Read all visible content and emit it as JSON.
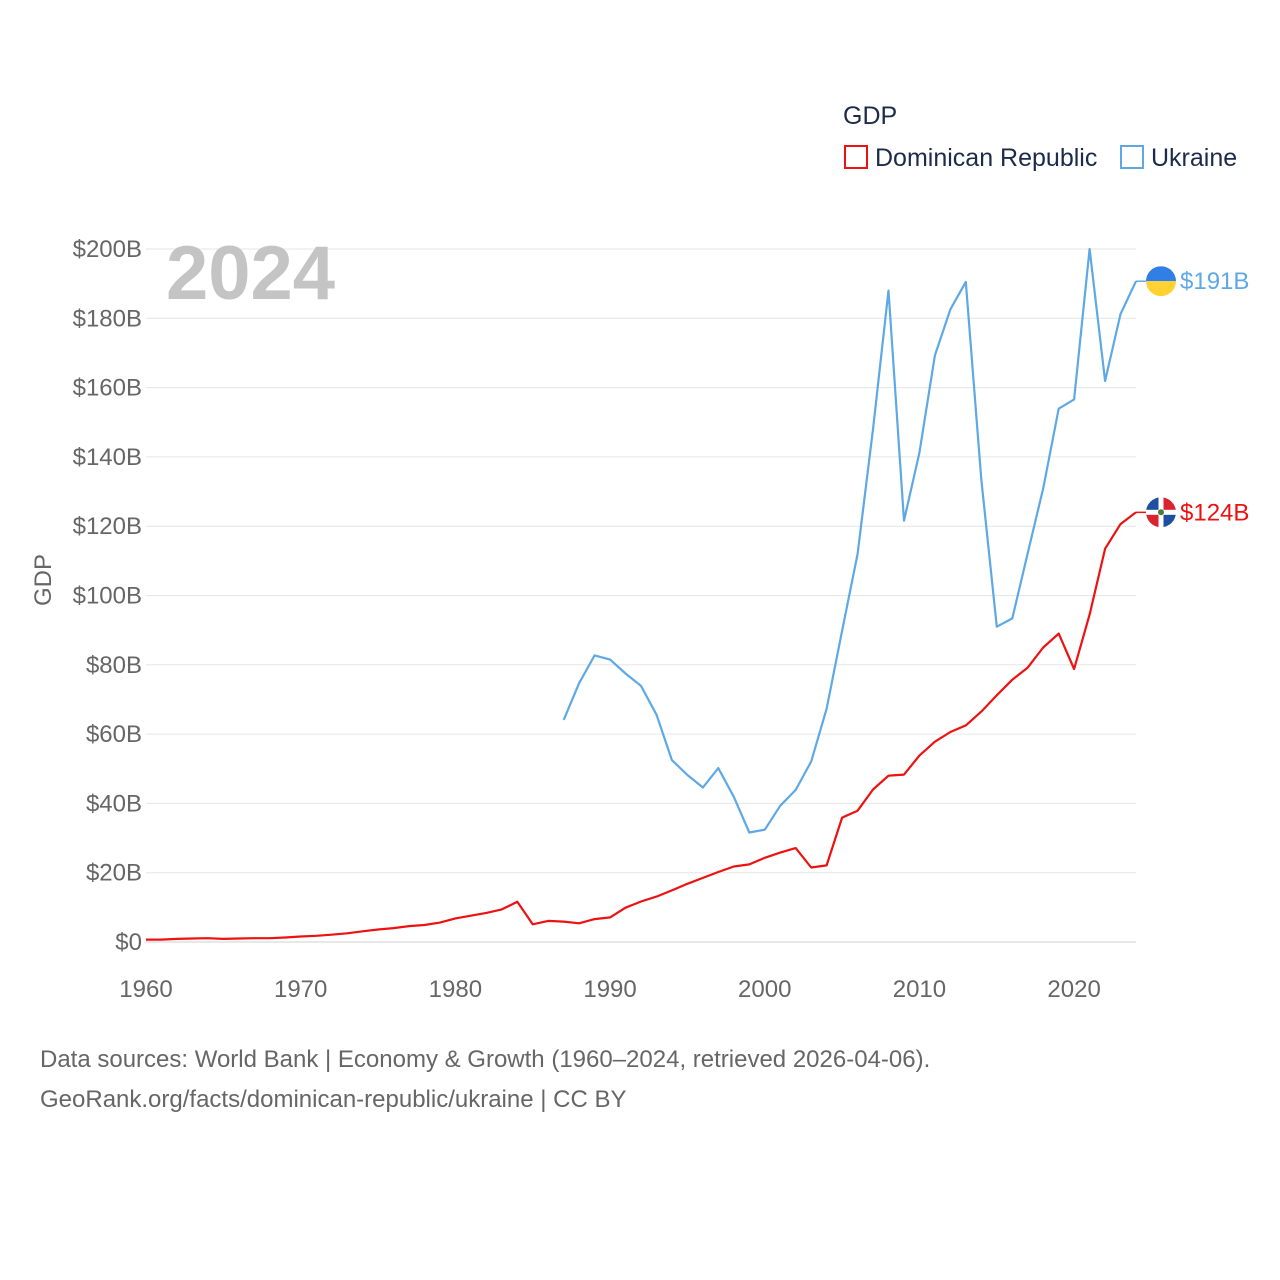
{
  "colors": {
    "dominican_republic": "#ee1111",
    "ukraine": "#5ea8e6",
    "grid": "#e6e6e6",
    "axis_text": "#666666",
    "watermark": "#c4c4c4",
    "legend_text": "#1c2b4a"
  },
  "chart_data": {
    "type": "line",
    "title": "",
    "xlabel": "",
    "ylabel": "GDP",
    "year_watermark": "2024",
    "legend_title": "GDP",
    "legend_position": "top-right",
    "xlim": [
      1960,
      2024
    ],
    "ylim": [
      0,
      200
    ],
    "unit": "billion USD",
    "x_ticks": [
      1960,
      1970,
      1980,
      1990,
      2000,
      2010,
      2020
    ],
    "x_tick_labels": [
      "1960",
      "1970",
      "1980",
      "1990",
      "2000",
      "2010",
      "2020"
    ],
    "y_ticks": [
      0,
      20,
      40,
      60,
      80,
      100,
      120,
      140,
      160,
      180,
      200
    ],
    "y_tick_labels": [
      "$0",
      "$20B",
      "$40B",
      "$60B",
      "$80B",
      "$100B",
      "$120B",
      "$140B",
      "$160B",
      "$180B",
      "$200B"
    ],
    "grid": true,
    "series": [
      {
        "name": "Dominican Republic",
        "color": "#ee1111",
        "end_label": "$124B",
        "flag": "dominican-republic",
        "x": [
          1960,
          1961,
          1962,
          1963,
          1964,
          1965,
          1966,
          1967,
          1968,
          1969,
          1970,
          1971,
          1972,
          1973,
          1974,
          1975,
          1976,
          1977,
          1978,
          1979,
          1980,
          1981,
          1982,
          1983,
          1984,
          1985,
          1986,
          1987,
          1988,
          1989,
          1990,
          1991,
          1992,
          1993,
          1994,
          1995,
          1996,
          1997,
          1998,
          1999,
          2000,
          2001,
          2002,
          2003,
          2004,
          2005,
          2006,
          2007,
          2008,
          2009,
          2010,
          2011,
          2012,
          2013,
          2014,
          2015,
          2016,
          2017,
          2018,
          2019,
          2020,
          2021,
          2022,
          2023,
          2024
        ],
        "values": [
          0.7,
          0.7,
          0.9,
          1.0,
          1.1,
          0.9,
          1.0,
          1.1,
          1.1,
          1.3,
          1.6,
          1.8,
          2.1,
          2.5,
          3.1,
          3.6,
          4.0,
          4.6,
          4.9,
          5.6,
          6.8,
          7.6,
          8.4,
          9.4,
          11.6,
          5.1,
          6.1,
          5.9,
          5.4,
          6.6,
          7.1,
          9.9,
          11.7,
          13.1,
          14.9,
          16.8,
          18.5,
          20.2,
          21.8,
          22.4,
          24.3,
          25.8,
          27.1,
          21.5,
          22.1,
          35.9,
          37.9,
          44.0,
          48.0,
          48.3,
          53.8,
          57.8,
          60.6,
          62.5,
          66.5,
          71.2,
          75.7,
          79.2,
          85.0,
          89.0,
          78.8,
          94.5,
          113.5,
          120.6,
          124.0
        ]
      },
      {
        "name": "Ukraine",
        "color": "#5ea8e6",
        "end_label": "$191B",
        "flag": "ukraine",
        "x": [
          1987,
          1988,
          1989,
          1990,
          1991,
          1992,
          1993,
          1994,
          1995,
          1996,
          1997,
          1998,
          1999,
          2000,
          2001,
          2002,
          2003,
          2004,
          2005,
          2006,
          2007,
          2008,
          2009,
          2010,
          2011,
          2012,
          2013,
          2014,
          2015,
          2016,
          2017,
          2018,
          2019,
          2020,
          2021,
          2022,
          2023,
          2024
        ],
        "values": [
          64.1,
          74.7,
          82.7,
          81.5,
          77.5,
          73.9,
          65.6,
          52.5,
          48.2,
          44.6,
          50.2,
          41.9,
          31.6,
          32.4,
          39.3,
          43.9,
          52.1,
          67.3,
          89.8,
          112.0,
          148.0,
          188.0,
          121.6,
          141.2,
          169.3,
          182.6,
          190.5,
          133.5,
          91.0,
          93.4,
          112.2,
          130.9,
          153.9,
          156.6,
          200.0,
          161.9,
          181.2,
          190.7
        ]
      }
    ]
  },
  "footer": {
    "line1": "Data sources: World Bank | Economy & Growth (1960–2024, retrieved 2026-04-06).",
    "line2": "GeoRank.org/facts/dominican-republic/ukraine | CC BY"
  }
}
